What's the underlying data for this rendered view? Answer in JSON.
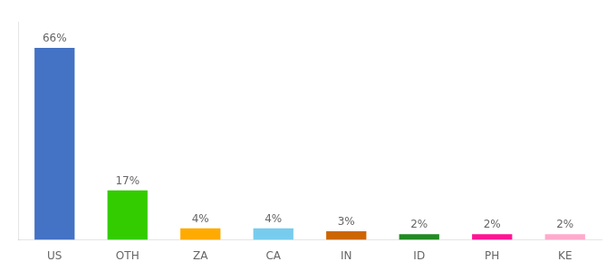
{
  "chart_data": {
    "type": "bar",
    "categories": [
      "US",
      "OTH",
      "ZA",
      "CA",
      "IN",
      "ID",
      "PH",
      "KE"
    ],
    "values": [
      66,
      17,
      4,
      4,
      3,
      2,
      2,
      2
    ],
    "value_labels": [
      "66%",
      "17%",
      "4%",
      "4%",
      "3%",
      "2%",
      "2%",
      "2%"
    ],
    "colors": [
      "#4472c4",
      "#33cc00",
      "#ffaa00",
      "#77ccee",
      "#cc6600",
      "#228B22",
      "#ff1493",
      "#ffaacc"
    ],
    "ylim": [
      0,
      75
    ],
    "data_labels": true,
    "tick_labels": "x",
    "grid": false
  }
}
